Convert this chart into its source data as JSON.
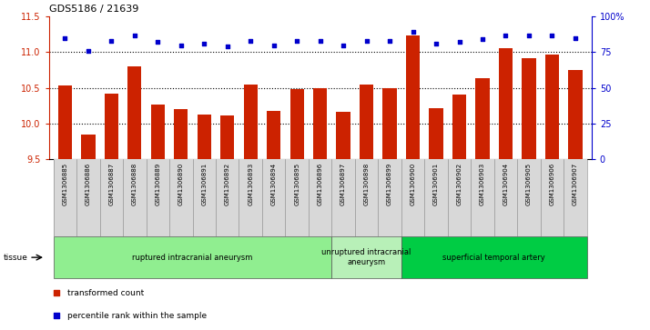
{
  "title": "GDS5186 / 21639",
  "samples": [
    "GSM1306885",
    "GSM1306886",
    "GSM1306887",
    "GSM1306888",
    "GSM1306889",
    "GSM1306890",
    "GSM1306891",
    "GSM1306892",
    "GSM1306893",
    "GSM1306894",
    "GSM1306895",
    "GSM1306896",
    "GSM1306897",
    "GSM1306898",
    "GSM1306899",
    "GSM1306900",
    "GSM1306901",
    "GSM1306902",
    "GSM1306903",
    "GSM1306904",
    "GSM1306905",
    "GSM1306906",
    "GSM1306907"
  ],
  "bar_values": [
    10.53,
    9.85,
    10.42,
    10.8,
    10.27,
    10.2,
    10.13,
    10.11,
    10.55,
    10.17,
    10.48,
    10.5,
    10.16,
    10.55,
    10.5,
    11.24,
    10.22,
    10.41,
    10.63,
    11.06,
    10.92,
    10.97,
    10.75
  ],
  "percentile_values": [
    85,
    76,
    83,
    87,
    82,
    80,
    81,
    79,
    83,
    80,
    83,
    83,
    80,
    83,
    83,
    89,
    81,
    82,
    84,
    87,
    87,
    87,
    85
  ],
  "groups": [
    {
      "label": "ruptured intracranial aneurysm",
      "start": 0,
      "end": 12,
      "color": "#90EE90"
    },
    {
      "label": "unruptured intracranial\naneurysm",
      "start": 12,
      "end": 15,
      "color": "#b8f0b8"
    },
    {
      "label": "superficial temporal artery",
      "start": 15,
      "end": 23,
      "color": "#00cc44"
    }
  ],
  "bar_color": "#cc2200",
  "dot_color": "#0000cc",
  "ylim_left": [
    9.5,
    11.5
  ],
  "ylim_right": [
    0,
    100
  ],
  "yticks_left": [
    9.5,
    10.0,
    10.5,
    11.0,
    11.5
  ],
  "yticks_right": [
    0,
    25,
    50,
    75,
    100
  ],
  "ytick_labels_right": [
    "0",
    "25",
    "50",
    "75",
    "100%"
  ],
  "grid_lines": [
    10.0,
    10.5,
    11.0
  ],
  "tissue_label": "tissue",
  "legend_bar_label": "transformed count",
  "legend_dot_label": "percentile rank within the sample"
}
